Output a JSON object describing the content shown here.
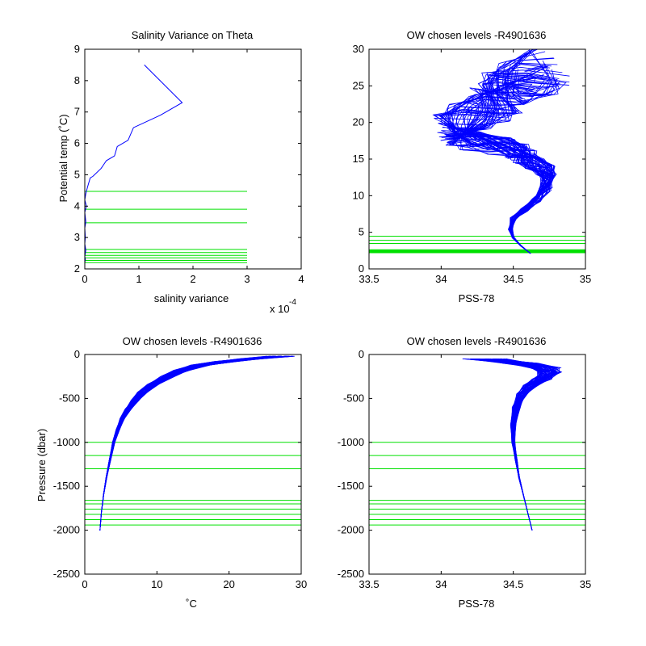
{
  "colors": {
    "profile": "#0000ff",
    "level": "#00e000",
    "axis": "#000000",
    "background": "#ffffff"
  },
  "chart_data": [
    {
      "type": "line",
      "title": "Salinity Variance on Theta",
      "xlabel": "salinity variance",
      "ylabel": "Potential temp (˚C)",
      "xlim": [
        0,
        4
      ],
      "ylim": [
        2,
        9
      ],
      "x_exponent_label": "x 10",
      "x_exponent": "-4",
      "xticks": [
        "0",
        "1",
        "2",
        "3",
        "4"
      ],
      "yticks": [
        "2",
        "3",
        "4",
        "5",
        "6",
        "7",
        "8",
        "9"
      ],
      "grid": false,
      "series": [
        {
          "x": [
            1.1,
            1.8,
            1.4,
            0.9,
            0.8,
            0.6,
            0.55,
            0.4,
            0.3,
            0.15,
            0.1,
            0.05,
            0.02,
            0.0,
            0.03,
            0.0,
            0.02,
            0.0,
            0.01,
            0.0,
            0.02,
            0.0,
            0.01,
            0.0,
            0.0
          ],
          "y": [
            8.5,
            7.3,
            6.9,
            6.5,
            6.1,
            5.9,
            5.6,
            5.45,
            5.2,
            4.95,
            4.9,
            4.6,
            4.4,
            4.2,
            4.0,
            3.8,
            3.5,
            3.3,
            3.0,
            2.8,
            2.6,
            2.4,
            2.3,
            2.2,
            2.05
          ]
        }
      ],
      "hlines": {
        "x_range": [
          0,
          3
        ],
        "y": [
          4.47,
          3.9,
          3.47,
          2.62,
          2.52,
          2.43,
          2.35,
          2.27,
          2.2
        ]
      }
    },
    {
      "type": "line",
      "title": "OW chosen levels -R4901636",
      "xlabel": "PSS-78",
      "ylabel": "",
      "xlim": [
        33.5,
        35
      ],
      "ylim": [
        0,
        30
      ],
      "xticks": [
        "33.5",
        "34",
        "34.5",
        "35"
      ],
      "yticks": [
        "0",
        "5",
        "10",
        "15",
        "20",
        "25",
        "30"
      ],
      "grid": false,
      "profile_count": 60,
      "profile_mean": {
        "salinity": [
          34.62,
          34.55,
          34.5,
          34.48,
          34.5,
          34.58,
          34.66,
          34.72,
          34.74,
          34.72,
          34.66,
          34.58,
          34.5,
          34.4,
          34.25,
          34.12,
          34.1,
          34.2,
          34.3,
          34.4,
          34.5,
          34.6,
          34.66
        ],
        "theta": [
          2.1,
          3.2,
          4.3,
          5.5,
          6.8,
          8.0,
          9.5,
          11.0,
          12.5,
          13.5,
          14.5,
          15.3,
          16.0,
          16.8,
          17.5,
          18.3,
          19.5,
          20.8,
          22.0,
          23.3,
          24.6,
          26.0,
          27.5
        ]
      },
      "hlines": {
        "x_range": [
          33.5,
          35
        ],
        "y": [
          4.47,
          3.9,
          3.47,
          2.62,
          2.52,
          2.43,
          2.35,
          2.27,
          2.2
        ]
      }
    },
    {
      "type": "line",
      "title": "OW chosen levels -R4901636",
      "xlabel": "˚C",
      "ylabel": "Pressure (dbar)",
      "xlim": [
        0,
        30
      ],
      "ylim": [
        -2500,
        0
      ],
      "xticks": [
        "0",
        "10",
        "20",
        "30"
      ],
      "yticks": [
        "-2500",
        "-2000",
        "-1500",
        "-1000",
        "-500",
        "0"
      ],
      "grid": false,
      "profile_count": 60,
      "profile_mean": {
        "temperature": [
          2.1,
          2.3,
          2.6,
          3.0,
          3.5,
          4.0,
          4.6,
          5.2,
          6.0,
          7.0,
          8.0,
          9.5,
          11.5,
          13.5,
          16.0,
          19.5,
          23.0,
          27.0
        ],
        "pressure": [
          -2000,
          -1800,
          -1600,
          -1400,
          -1200,
          -1000,
          -850,
          -730,
          -620,
          -520,
          -430,
          -340,
          -250,
          -180,
          -120,
          -80,
          -50,
          -20
        ]
      },
      "hlines": {
        "x_range": [
          0,
          30
        ],
        "y": [
          -1000,
          -1150,
          -1300,
          -1660,
          -1700,
          -1760,
          -1820,
          -1880,
          -1940
        ]
      }
    },
    {
      "type": "line",
      "title": "OW chosen levels -R4901636",
      "xlabel": "PSS-78",
      "ylabel": "",
      "xlim": [
        33.5,
        35
      ],
      "ylim": [
        -2500,
        0
      ],
      "xticks": [
        "33.5",
        "34",
        "34.5",
        "35"
      ],
      "yticks": [
        "-2500",
        "-2000",
        "-1500",
        "-1000",
        "-500",
        "0"
      ],
      "grid": false,
      "profile_count": 60,
      "profile_mean": {
        "salinity": [
          34.63,
          34.6,
          34.57,
          34.54,
          34.52,
          34.5,
          34.5,
          34.52,
          34.56,
          34.62,
          34.7,
          34.75,
          34.72,
          34.55,
          34.3
        ],
        "pressure": [
          -2000,
          -1800,
          -1600,
          -1400,
          -1200,
          -1000,
          -800,
          -600,
          -450,
          -350,
          -280,
          -200,
          -150,
          -100,
          -50
        ]
      },
      "hlines": {
        "x_range": [
          33.5,
          35
        ],
        "y": [
          -1000,
          -1150,
          -1300,
          -1660,
          -1700,
          -1760,
          -1820,
          -1880,
          -1940
        ]
      }
    }
  ]
}
